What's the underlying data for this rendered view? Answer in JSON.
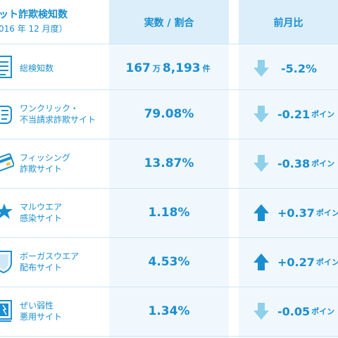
{
  "header": {
    "title": "ット詐欺検知数",
    "subtitle": "016 年 12 月度）",
    "col_value": "実数 / 割合",
    "col_change": "前月比"
  },
  "rows": [
    {
      "label1": "総検知数",
      "label2": "",
      "value_main": "167",
      "value_unit1": "万",
      "value_rest": "8,193",
      "value_unit2": "件",
      "change": "-5.2%",
      "change_unit": "",
      "direction": "down"
    },
    {
      "label1": "ワンクリック・",
      "label2": "不当請求詐欺サイト",
      "value_main": "79.08%",
      "change": "-0.21",
      "change_unit": "ポイン",
      "direction": "down"
    },
    {
      "label1": "フィッシング",
      "label2": "詐欺サイト",
      "value_main": "13.87%",
      "change": "-0.38",
      "change_unit": "ポイン",
      "direction": "down"
    },
    {
      "label1": "マルウエア",
      "label2": "感染サイト",
      "value_main": "1.18%",
      "change": "+0.37",
      "change_unit": "ポイン",
      "direction": "up"
    },
    {
      "label1": "ボーガスウエア",
      "label2": "配布サイト",
      "value_main": "4.53%",
      "change": "+0.27",
      "change_unit": "ポイン",
      "direction": "up"
    },
    {
      "label1": "ぜい弱性",
      "label2": "悪用サイト",
      "value_main": "1.34%",
      "change": "-0.05",
      "change_unit": "ポイン",
      "direction": "down"
    }
  ],
  "colors": {
    "accent": "#1a8fd0",
    "arrow_up": "#1a8fd0",
    "arrow_down": "#8ed0ea",
    "column_bg": "#f1f8fd",
    "header_bg": "#dbeefa"
  },
  "icons": [
    "document-icon",
    "hand-click-icon",
    "credit-card-icon",
    "malware-star-icon",
    "shield-icon",
    "vulnerable-screen-icon"
  ]
}
